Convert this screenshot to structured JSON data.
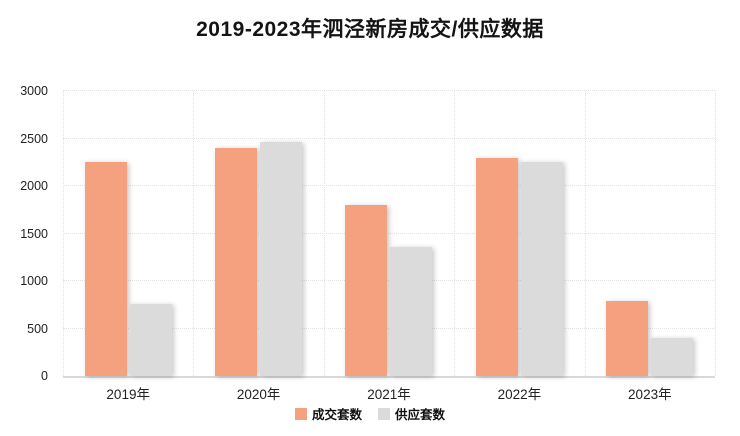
{
  "title": "2019-2023年泗泾新房成交/供应数据",
  "colors": {
    "bar_transaction": "#F5A17F",
    "bar_supply": "#DBDBDB",
    "grid": "#E3E3E3",
    "axis_line": "#D9D9D9",
    "title_text": "#141414",
    "tick_text": "#222222",
    "background": "#FFFFFF"
  },
  "chart_data": {
    "type": "bar",
    "title": "2019-2023年泗泾新房成交/供应数据",
    "categories": [
      "2019年",
      "2020年",
      "2021年",
      "2022年",
      "2023年"
    ],
    "series": [
      {
        "name": "成交套数",
        "color": "#F5A17F",
        "values": [
          2250,
          2400,
          1800,
          2300,
          790
        ]
      },
      {
        "name": "供应套数",
        "color": "#DBDBDB",
        "values": [
          760,
          2460,
          1360,
          2250,
          400
        ]
      }
    ],
    "xlabel": "",
    "ylabel": "",
    "ylim": [
      0,
      3000
    ],
    "yticks": [
      0,
      500,
      1000,
      1500,
      2000,
      2500,
      3000
    ],
    "grid": "dotted horizontal and vertical",
    "legend_position": "bottom"
  },
  "legend": {
    "items": [
      {
        "label": "成交套数",
        "color": "#F5A17F"
      },
      {
        "label": "供应套数",
        "color": "#DBDBDB"
      }
    ]
  }
}
